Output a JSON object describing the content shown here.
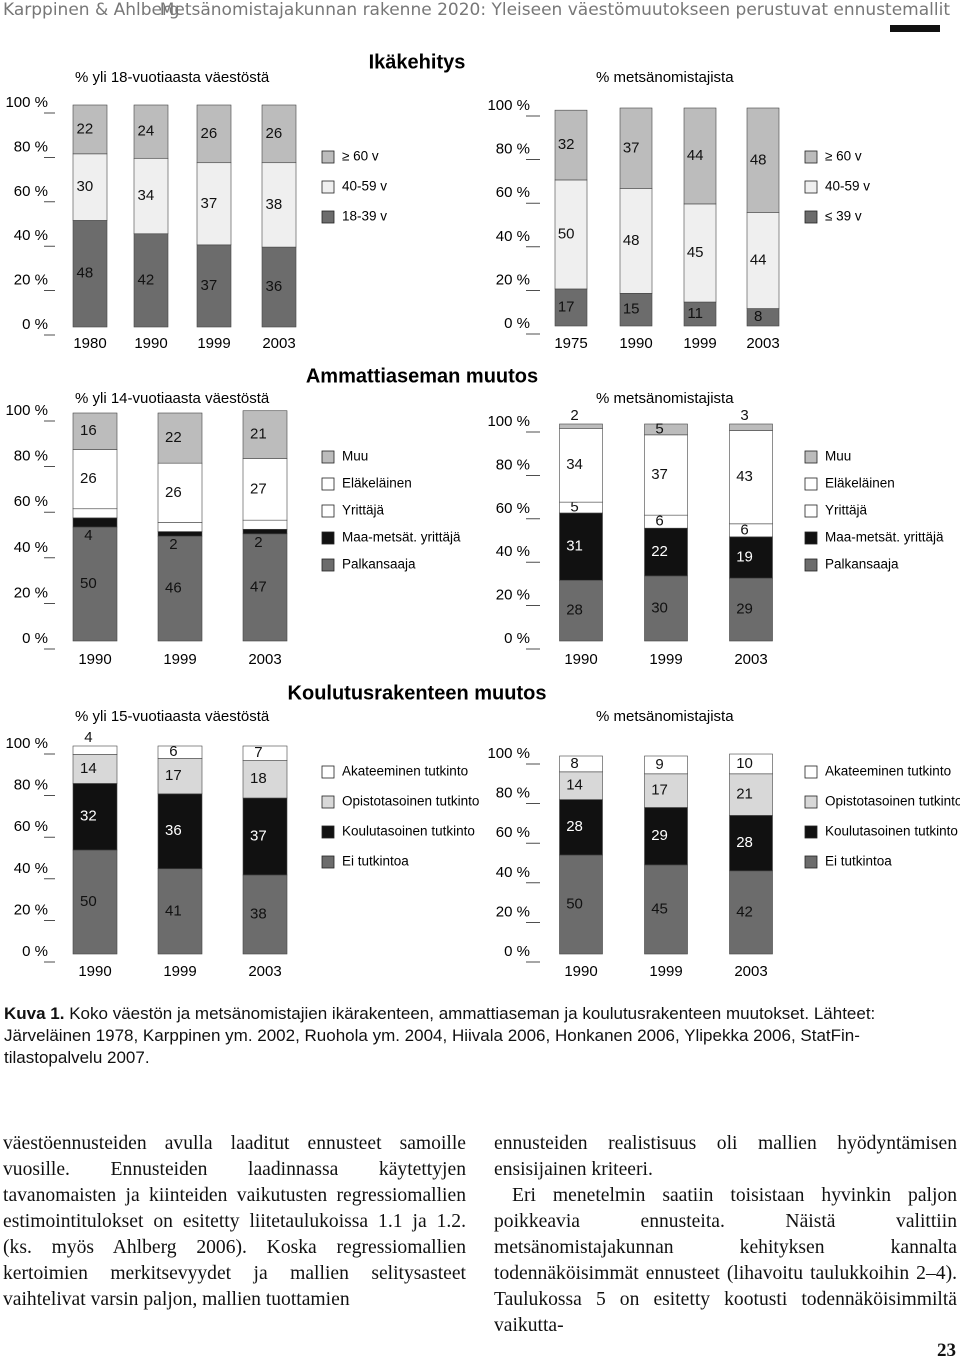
{
  "header": {
    "author": "Karppinen & Ahlberg",
    "title": "Metsänomistajakunnan rakenne 2020: Yleiseen väestömuutokseen perustuvat ennustemallit"
  },
  "figure": {
    "sections": [
      "Ikäkehitys",
      "Ammattiaseman muutos",
      "Koulutusrakenteen muutos"
    ]
  },
  "chart_data": [
    {
      "type": "bar",
      "stacked": true,
      "subtitle": "% yli 18-vuotiaasta väestöstä",
      "categories": [
        "1980",
        "1990",
        "1999",
        "2003"
      ],
      "series": [
        {
          "name": "18-39 v",
          "color": "#6c6c6c",
          "values": [
            48,
            42,
            37,
            36
          ]
        },
        {
          "name": "40-59 v",
          "color": "#efefef",
          "values": [
            30,
            34,
            37,
            38
          ]
        },
        {
          "name": "≥ 60 v",
          "color": "#bcbcbc",
          "values": [
            22,
            24,
            26,
            26
          ]
        }
      ],
      "ylim": [
        0,
        100
      ],
      "yticks": [
        {
          "value": 0,
          "label": "0 %"
        },
        {
          "value": 20,
          "label": "20 %"
        },
        {
          "value": 40,
          "label": "40 %"
        },
        {
          "value": 60,
          "label": "60 %"
        },
        {
          "value": 80,
          "label": "80 %"
        },
        {
          "value": 100,
          "label": "100 %"
        }
      ]
    },
    {
      "type": "bar",
      "stacked": true,
      "subtitle": "% metsänomistajista",
      "categories": [
        "1975",
        "1990",
        "1999",
        "2003"
      ],
      "series": [
        {
          "name": "≤ 39 v",
          "color": "#6c6c6c",
          "values": [
            17,
            15,
            11,
            8
          ]
        },
        {
          "name": "40-59 v",
          "color": "#efefef",
          "values": [
            50,
            48,
            45,
            44
          ]
        },
        {
          "name": "≥ 60 v",
          "color": "#bcbcbc",
          "values": [
            32,
            37,
            44,
            48
          ]
        }
      ],
      "ylim": [
        0,
        100
      ],
      "yticks": [
        {
          "value": 0,
          "label": "0 %"
        },
        {
          "value": 20,
          "label": "20 %"
        },
        {
          "value": 40,
          "label": "40 %"
        },
        {
          "value": 60,
          "label": "60 %"
        },
        {
          "value": 80,
          "label": "80 %"
        },
        {
          "value": 100,
          "label": "100 %"
        }
      ]
    },
    {
      "type": "bar",
      "stacked": true,
      "subtitle": "% yli 14-vuotiaasta väestöstä",
      "categories": [
        "1990",
        "1999",
        "2003"
      ],
      "series": [
        {
          "name": "Palkansaaja",
          "color": "#6c6c6c",
          "values": [
            50,
            46,
            47
          ]
        },
        {
          "name": "Maa-metsät. yrittäjä",
          "color": "#111111",
          "values": [
            4,
            2,
            2
          ]
        },
        {
          "name": "Yrittäjä",
          "color": "#ffffff",
          "values": [
            4,
            4,
            4
          ]
        },
        {
          "name": "Eläkeläinen",
          "color": "#ffffff",
          "values": [
            26,
            26,
            27
          ]
        },
        {
          "name": "Muu",
          "color": "#bcbcbc",
          "values": [
            16,
            22,
            21
          ]
        }
      ],
      "ylim": [
        0,
        100
      ],
      "yticks": [
        {
          "value": 0,
          "label": "0 %"
        },
        {
          "value": 20,
          "label": "20 %"
        },
        {
          "value": 40,
          "label": "40 %"
        },
        {
          "value": 60,
          "label": "60 %"
        },
        {
          "value": 80,
          "label": "80 %"
        },
        {
          "value": 100,
          "label": "100 %"
        }
      ]
    },
    {
      "type": "bar",
      "stacked": true,
      "subtitle": "% metsänomistajista",
      "categories": [
        "1990",
        "1999",
        "2003"
      ],
      "series": [
        {
          "name": "Palkansaaja",
          "color": "#6c6c6c",
          "values": [
            28,
            30,
            29
          ]
        },
        {
          "name": "Maa-metsät. yrittäjä",
          "color": "#111111",
          "values": [
            31,
            22,
            19
          ]
        },
        {
          "name": "Yrittäjä",
          "color": "#ffffff",
          "values": [
            5,
            6,
            6
          ]
        },
        {
          "name": "Eläkeläinen",
          "color": "#ffffff",
          "values": [
            34,
            37,
            43
          ]
        },
        {
          "name": "Muu",
          "color": "#bcbcbc",
          "values": [
            2,
            5,
            3
          ]
        }
      ],
      "ylim": [
        0,
        100
      ],
      "yticks": [
        {
          "value": 0,
          "label": "0 %"
        },
        {
          "value": 20,
          "label": "20 %"
        },
        {
          "value": 40,
          "label": "40 %"
        },
        {
          "value": 60,
          "label": "60 %"
        },
        {
          "value": 80,
          "label": "80 %"
        },
        {
          "value": 100,
          "label": "100 %"
        }
      ]
    },
    {
      "type": "bar",
      "stacked": true,
      "subtitle": "%  yli 15-vuotiaasta väestöstä",
      "categories": [
        "1990",
        "1999",
        "2003"
      ],
      "series": [
        {
          "name": "Ei tutkintoa",
          "color": "#6c6c6c",
          "values": [
            50,
            41,
            38
          ]
        },
        {
          "name": "Koulutasoinen tutkinto",
          "color": "#111111",
          "values": [
            32,
            36,
            37
          ]
        },
        {
          "name": "Opistotasoinen tutkinto",
          "color": "#d8d8d8",
          "values": [
            14,
            17,
            18
          ]
        },
        {
          "name": "Akateeminen tutkinto",
          "color": "#ffffff",
          "values": [
            4,
            6,
            7
          ]
        }
      ],
      "ylim": [
        0,
        100
      ],
      "yticks": [
        {
          "value": 0,
          "label": "0 %"
        },
        {
          "value": 20,
          "label": "20 %"
        },
        {
          "value": 40,
          "label": "40 %"
        },
        {
          "value": 60,
          "label": "60 %"
        },
        {
          "value": 80,
          "label": "80 %"
        },
        {
          "value": 100,
          "label": "100 %"
        }
      ]
    },
    {
      "type": "bar",
      "stacked": true,
      "subtitle": "% metsänomistajista",
      "categories": [
        "1990",
        "1999",
        "2003"
      ],
      "series": [
        {
          "name": "Ei tutkintoa",
          "color": "#6c6c6c",
          "values": [
            50,
            45,
            42
          ]
        },
        {
          "name": "Koulutasoinen tutkinto",
          "color": "#111111",
          "values": [
            28,
            29,
            28
          ]
        },
        {
          "name": "Opistotasoinen tutkinto",
          "color": "#d8d8d8",
          "values": [
            14,
            17,
            21
          ]
        },
        {
          "name": "Akateeminen tutkinto",
          "color": "#ffffff",
          "values": [
            8,
            9,
            10
          ]
        }
      ],
      "ylim": [
        0,
        100
      ],
      "yticks": [
        {
          "value": 0,
          "label": "0 %"
        },
        {
          "value": 20,
          "label": "20 %"
        },
        {
          "value": 40,
          "label": "40 %"
        },
        {
          "value": 60,
          "label": "60 %"
        },
        {
          "value": 80,
          "label": "80 %"
        },
        {
          "value": 100,
          "label": "100 %"
        }
      ]
    }
  ],
  "caption": {
    "label": "Kuva 1.",
    "text": "Koko väestön ja metsänomistajien ikärakenteen, ammattiaseman ja koulutusrakenteen muutokset. Lähteet: Järveläinen 1978, Karppinen ym. 2002, Ruohola ym. 2004, Hiivala 2006, Honkanen 2006, Ylipekka 2006, StatFin-tilastopalvelu 2007."
  },
  "body": {
    "left": [
      "väestöennusteiden avulla laaditut ennusteet samoille vuosille. Ennusteiden laadinnassa käytettyjen tavanomaisten ja kiinteiden vaikutusten regressiomallien estimointitulokset on esitetty liitetaulukoissa 1.1 ja 1.2. (ks. myös Ahlberg 2006). Koska regressiomallien kertoimien merkitsevyydet ja mallien selitysasteet vaihtelivat varsin paljon, mallien tuottamien"
    ],
    "right": [
      "ennusteiden realistisuus oli mallien hyödyntämisen ensisijainen kriteeri.",
      "Eri menetelmin saatiin toisistaan hyvinkin paljon poikkeavia ennusteita. Näistä valittiin metsänomistajakunnan kehityksen kannalta todennäköisimmät ennusteet (lihavoitu taulukkoihin 2–4). Taulukossa 5 on esitetty kootusti todennäköisimmiltä vaikutta-"
    ]
  },
  "page_number": "23"
}
